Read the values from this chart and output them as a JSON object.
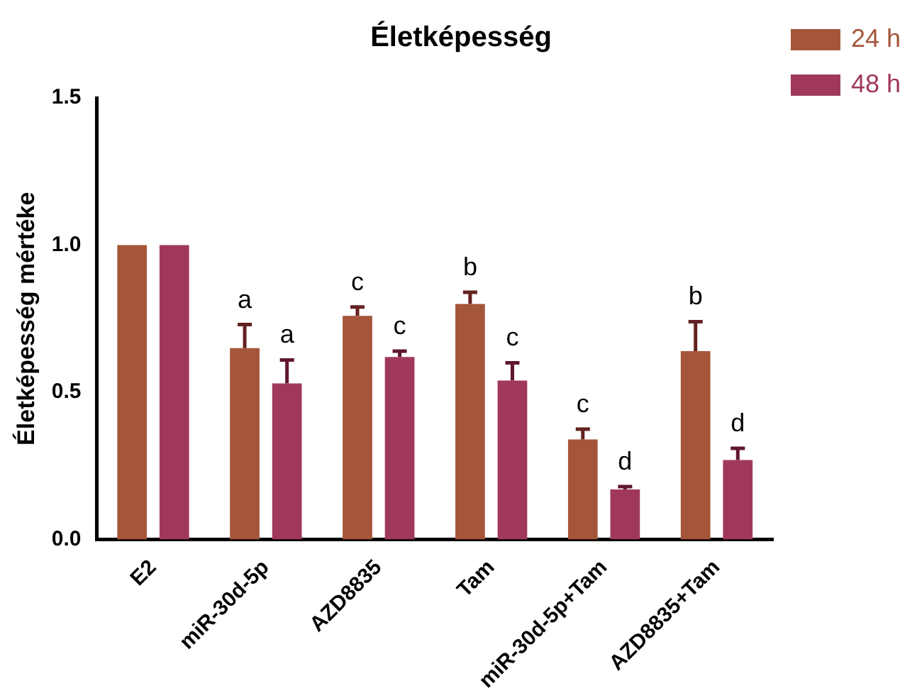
{
  "chart_data": {
    "type": "bar",
    "title": "Életképesség",
    "ylabel": "Életképesség mértéke",
    "categories": [
      "E2",
      "miR-30d-5p",
      "AZD8835",
      "Tam",
      "miR-30d-5p+Tam",
      "AZD8835+Tam"
    ],
    "series": [
      {
        "name": "24 h",
        "color": "#a5553a",
        "values": [
          1.0,
          0.65,
          0.76,
          0.8,
          0.34,
          0.64
        ],
        "errors": [
          null,
          0.08,
          0.03,
          0.04,
          0.035,
          0.1
        ],
        "value_labels": [
          null,
          "a",
          "c",
          "b",
          "c",
          "b"
        ]
      },
      {
        "name": "48 h",
        "color": "#a0385a",
        "values": [
          1.0,
          0.53,
          0.62,
          0.54,
          0.17,
          0.27
        ],
        "errors": [
          null,
          0.08,
          0.02,
          0.06,
          0.01,
          0.04
        ],
        "value_labels": [
          null,
          "a",
          "c",
          "c",
          "d",
          "d"
        ]
      }
    ],
    "ylim": [
      0,
      1.5
    ],
    "yticks": [
      {
        "value": 0,
        "label": "0.0"
      },
      {
        "value": 0.5,
        "label": "0.5"
      },
      {
        "value": 1,
        "label": "1.0"
      },
      {
        "value": 1.5,
        "label": "1.5"
      }
    ],
    "grid": false,
    "legend": "top right"
  }
}
